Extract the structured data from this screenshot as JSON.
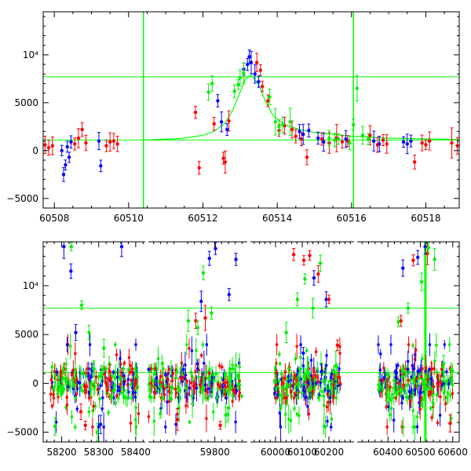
{
  "chart_data": [
    {
      "type": "scatter",
      "title": "",
      "xlabel": "",
      "ylabel": "",
      "xlim": [
        60507.7,
        60518.9
      ],
      "ylim": [
        -6000,
        14500
      ],
      "xticks": [
        60508,
        60510,
        60512,
        60514,
        60516,
        60518
      ],
      "yticks": [
        -5000,
        0,
        5000,
        10000
      ],
      "ytick_labels": [
        "−5000",
        "0",
        "5000",
        "10⁴"
      ],
      "reference_lines": {
        "horizontal": [
          7700,
          1100
        ],
        "vertical": [
          60510.4,
          60516.05
        ],
        "color": "#00ff00"
      },
      "model_curve": {
        "color": "#00ff00",
        "x": [
          60510.4,
          60511.0,
          60511.5,
          60512.0,
          60512.3,
          60512.6,
          60512.8,
          60513.0,
          60513.15,
          60513.3,
          60513.5,
          60513.7,
          60513.9,
          60514.2,
          60514.6,
          60515.0,
          60516.0,
          60517.0,
          60518.9
        ],
        "y": [
          1100,
          1180,
          1300,
          1600,
          2000,
          2900,
          4200,
          6100,
          7500,
          7900,
          6900,
          5000,
          3600,
          2700,
          2200,
          1900,
          1500,
          1300,
          1150
        ]
      },
      "series": [
        {
          "color": "#ff0000",
          "x": [
            60507.75,
            60507.85,
            60507.95,
            60508.55,
            60508.65,
            60508.75,
            60508.85,
            60509.4,
            60509.5,
            60509.6,
            60509.7,
            60511.8,
            60511.9,
            60512.3,
            60512.55,
            60512.6,
            60512.7,
            60513.45,
            60513.55,
            60513.6,
            60513.75,
            60514.05,
            60514.2,
            60514.4,
            60514.5,
            60514.65,
            60514.8,
            60515.2,
            60515.4,
            60515.6,
            60515.75,
            60515.9,
            60516.5,
            60516.7,
            60516.85,
            60516.95,
            60517.7,
            60517.9,
            60518.0,
            60518.1,
            60518.7,
            60518.85
          ],
          "y": [
            600,
            300,
            500,
            700,
            1300,
            2200,
            800,
            500,
            900,
            1000,
            700,
            4000,
            -1800,
            2800,
            -800,
            -1200,
            3100,
            9200,
            8400,
            6700,
            5200,
            2100,
            2600,
            2200,
            1500,
            1200,
            -700,
            1200,
            800,
            1300,
            900,
            1000,
            1600,
            600,
            1100,
            700,
            -1200,
            800,
            600,
            1000,
            800,
            500
          ]
        },
        {
          "color": "#0000ff",
          "x": [
            60508.2,
            60508.25,
            60508.3,
            60508.35,
            60508.4,
            60508.45,
            60509.2,
            60509.25,
            60512.4,
            60512.5,
            60512.65,
            60513.1,
            60513.2,
            60513.25,
            60513.3,
            60513.4,
            60513.5,
            60514.6,
            60514.7,
            60514.85,
            60515.1,
            60515.25,
            60515.85,
            60516.6,
            60516.75,
            60517.4,
            60517.5,
            60517.6
          ],
          "y": [
            0,
            -2500,
            -1500,
            400,
            -700,
            900,
            1000,
            -1600,
            5200,
            3000,
            2200,
            8500,
            9000,
            9800,
            9200,
            8000,
            7200,
            2000,
            1700,
            2100,
            1300,
            900,
            1200,
            1000,
            700,
            900,
            700,
            1000
          ]
        },
        {
          "color": "#00ee00",
          "x": [
            60512.15,
            60512.25,
            60512.85,
            60512.95,
            60513.0,
            60513.1,
            60513.8,
            60513.95,
            60514.05,
            60514.15,
            60514.35,
            60515.4,
            60515.55,
            60515.65,
            60515.95,
            60516.05,
            60516.15,
            60516.3,
            60516.45
          ],
          "y": [
            6100,
            7000,
            6200,
            6900,
            7600,
            8100,
            5600,
            3000,
            2500,
            2700,
            3000,
            1300,
            1100,
            1200,
            800,
            2700,
            6500,
            1600,
            1200
          ]
        }
      ]
    },
    {
      "type": "scatter",
      "title": "",
      "xlabel": "",
      "ylabel": "",
      "ylim": [
        -6000,
        14500
      ],
      "yticks": [
        -5000,
        0,
        5000,
        10000
      ],
      "ytick_labels": [
        "−5000",
        "0",
        "5000",
        "10⁴"
      ],
      "broken_x_axis": true,
      "segments": [
        {
          "xlim": [
            58150,
            58430
          ],
          "xticks": [
            58200,
            58300,
            58400
          ]
        },
        {
          "xlim": [
            59600,
            59900
          ],
          "xticks": [
            59800
          ]
        },
        {
          "xlim": [
            59900,
            60300
          ],
          "xticks": [
            60000,
            60100,
            60200
          ]
        },
        {
          "xlim": [
            60300,
            60620
          ],
          "xticks": [
            60400,
            60500,
            60600
          ]
        }
      ],
      "reference_lines": {
        "horizontal": [
          7700,
          1100
        ],
        "vertical": [
          60515.5
        ],
        "color": "#00ff00"
      },
      "series": [
        {
          "color": "#0000ff",
          "x": [
            58206,
            58225,
            58238,
            58282,
            58305,
            58362,
            59760,
            59784,
            59802,
            59842,
            59862,
            60104,
            60144,
            60172,
            60190,
            60446,
            60492,
            60515
          ],
          "y": [
            14000,
            11500,
            5200,
            1300,
            -4200,
            14000,
            8400,
            12800,
            13800,
            9100,
            12700,
            3100,
            10800,
            1200,
            8600,
            11800,
            12900,
            14000
          ]
        },
        {
          "color": "#ff0000",
          "x": [
            58252,
            58264,
            58330,
            59690,
            59744,
            59772,
            59816,
            60068,
            60106,
            60128,
            60160,
            60200,
            60232,
            60440,
            60478,
            60522,
            60592
          ],
          "y": [
            -2900,
            -4300,
            1200,
            -3700,
            6400,
            6700,
            -4300,
            13200,
            12600,
            13100,
            11200,
            8600,
            3900,
            6400,
            12600,
            13300,
            -4100
          ]
        },
        {
          "color": "#00ee00",
          "x": [
            58182,
            58226,
            58254,
            58274,
            58286,
            58296,
            58314,
            59640,
            59722,
            59750,
            59766,
            59790,
            59836,
            60040,
            60082,
            60110,
            60140,
            60168,
            60226,
            60432,
            60462,
            60504,
            60525,
            60544,
            60572
          ],
          "y": [
            -4400,
            14000,
            8000,
            5200,
            1500,
            -5000,
            3600,
            -3100,
            6400,
            5700,
            11300,
            7200,
            -3200,
            5200,
            8600,
            10700,
            7700,
            12300,
            1800,
            6300,
            7700,
            10400,
            13900,
            12700,
            2000
          ]
        }
      ],
      "density_bands": [
        {
          "x": [
            58170,
            58410
          ],
          "y_core": [
            -1500,
            1500
          ],
          "y_spread": [
            -4500,
            4000
          ]
        },
        {
          "x": [
            59605,
            59880
          ],
          "y_core": [
            -1500,
            1500
          ],
          "y_spread": [
            -4500,
            4000
          ]
        },
        {
          "x": [
            59995,
            60245
          ],
          "y_core": [
            -1500,
            1500
          ],
          "y_spread": [
            -4500,
            4000
          ]
        },
        {
          "x": [
            60370,
            60600
          ],
          "y_core": [
            -1500,
            1500
          ],
          "y_spread": [
            -4500,
            4000
          ]
        }
      ]
    }
  ]
}
